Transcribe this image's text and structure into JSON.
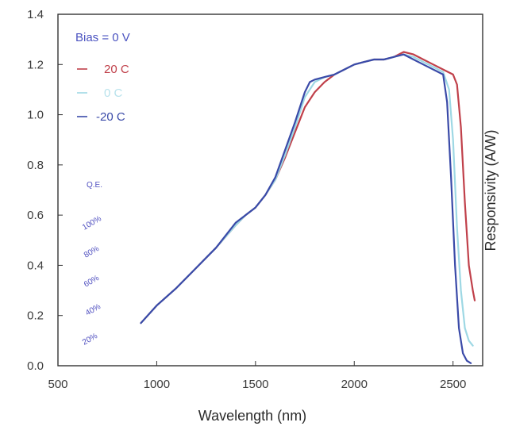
{
  "chart_data": {
    "type": "line",
    "title": "",
    "xlabel": "Wavelength (nm)",
    "ylabel": "Responsivity (A/W)",
    "xlim": [
      500,
      2650
    ],
    "ylim": [
      0,
      1.4
    ],
    "x_ticks": [
      500,
      1000,
      1500,
      2000,
      2500
    ],
    "x_tick_labels": [
      "500",
      "1000",
      "1500",
      "2000",
      "2500"
    ],
    "y_ticks": [
      0.0,
      0.2,
      0.4,
      0.6,
      0.8,
      1.0,
      1.2,
      1.4
    ],
    "y_tick_labels": [
      "0.0",
      "0.2",
      "0.4",
      "0.6",
      "0.8",
      "1.0",
      "1.2",
      "1.4"
    ],
    "grid": false,
    "legend_title": "Bias = 0 V",
    "legend_position": "top-left",
    "series": [
      {
        "name": "20 C",
        "color": "#c0404a",
        "x": [
          920,
          1000,
          1100,
          1200,
          1300,
          1400,
          1450,
          1500,
          1550,
          1600,
          1650,
          1700,
          1750,
          1800,
          1850,
          1900,
          1950,
          2000,
          2050,
          2100,
          2150,
          2200,
          2250,
          2300,
          2350,
          2400,
          2450,
          2500,
          2520,
          2540,
          2560,
          2580,
          2600,
          2610
        ],
        "y": [
          0.17,
          0.24,
          0.31,
          0.39,
          0.47,
          0.56,
          0.6,
          0.63,
          0.68,
          0.74,
          0.83,
          0.93,
          1.03,
          1.09,
          1.13,
          1.16,
          1.18,
          1.2,
          1.21,
          1.22,
          1.22,
          1.23,
          1.25,
          1.24,
          1.22,
          1.2,
          1.18,
          1.16,
          1.12,
          0.95,
          0.65,
          0.4,
          0.3,
          0.26
        ]
      },
      {
        "name": "0 C",
        "color": "#9ed8e4",
        "x": [
          920,
          1000,
          1100,
          1200,
          1300,
          1400,
          1450,
          1500,
          1550,
          1600,
          1650,
          1700,
          1750,
          1800,
          1850,
          1900,
          1950,
          2000,
          2050,
          2100,
          2150,
          2200,
          2250,
          2300,
          2350,
          2400,
          2450,
          2480,
          2500,
          2520,
          2540,
          2560,
          2580,
          2600
        ],
        "y": [
          0.17,
          0.24,
          0.31,
          0.39,
          0.47,
          0.56,
          0.6,
          0.63,
          0.68,
          0.74,
          0.84,
          0.95,
          1.07,
          1.13,
          1.15,
          1.16,
          1.18,
          1.2,
          1.21,
          1.22,
          1.22,
          1.23,
          1.24,
          1.23,
          1.21,
          1.19,
          1.17,
          1.1,
          0.9,
          0.55,
          0.3,
          0.15,
          0.1,
          0.08
        ]
      },
      {
        "name": "-20 C",
        "color": "#3a4aa8",
        "x": [
          920,
          1000,
          1100,
          1200,
          1300,
          1400,
          1450,
          1500,
          1550,
          1600,
          1650,
          1700,
          1750,
          1775,
          1800,
          1850,
          1900,
          1950,
          2000,
          2050,
          2100,
          2150,
          2200,
          2250,
          2300,
          2350,
          2400,
          2450,
          2470,
          2490,
          2510,
          2530,
          2550,
          2570,
          2590
        ],
        "y": [
          0.17,
          0.24,
          0.31,
          0.39,
          0.47,
          0.57,
          0.6,
          0.63,
          0.68,
          0.75,
          0.86,
          0.97,
          1.09,
          1.13,
          1.14,
          1.15,
          1.16,
          1.18,
          1.2,
          1.21,
          1.22,
          1.22,
          1.23,
          1.24,
          1.22,
          1.2,
          1.18,
          1.16,
          1.05,
          0.75,
          0.4,
          0.15,
          0.05,
          0.02,
          0.01
        ]
      }
    ],
    "qe_title": "Q.E.",
    "qe_labels": [
      "100%",
      "80%",
      "60%",
      "40%",
      "20%"
    ]
  }
}
